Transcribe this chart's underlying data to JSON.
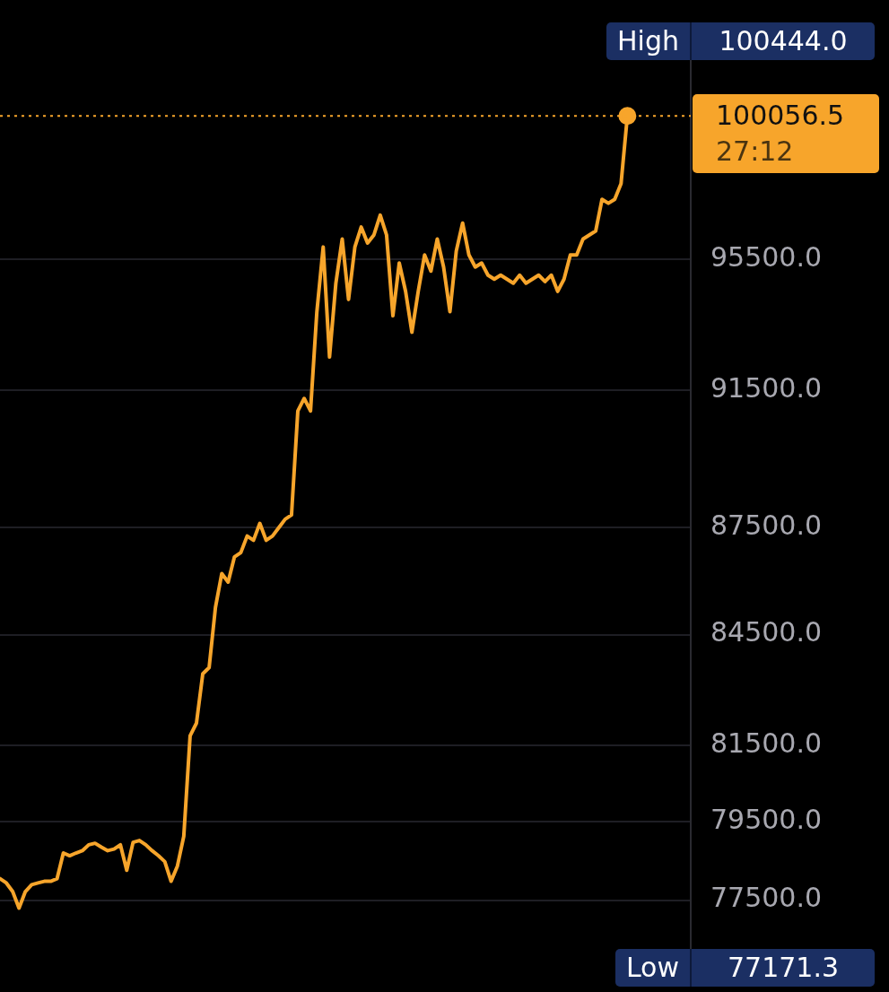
{
  "chart_data": {
    "type": "line",
    "categories": [
      null,
      null,
      null,
      null,
      null,
      null,
      null,
      null,
      null,
      null,
      null,
      null,
      null,
      null,
      null,
      null,
      null,
      null,
      null,
      null,
      null,
      null,
      null,
      null,
      null,
      null,
      null,
      null,
      null,
      null,
      null,
      null,
      null,
      null,
      null,
      null,
      null,
      null,
      null,
      null,
      null,
      null,
      null,
      null,
      null,
      null,
      null,
      null,
      null,
      null,
      null,
      null,
      null,
      null,
      null,
      null,
      null,
      null,
      null,
      null,
      null,
      null,
      null,
      null,
      null,
      null,
      null,
      null,
      null,
      null,
      null,
      null,
      null,
      null,
      null,
      null,
      null,
      null,
      null,
      null,
      null,
      null,
      null,
      null,
      null,
      null,
      null,
      null,
      null,
      null,
      null,
      null,
      null,
      null,
      null,
      null,
      null,
      null,
      null,
      null,
      null,
      null,
      null,
      null,
      null,
      null,
      null,
      null,
      null,
      null
    ],
    "series": [
      {
        "color": "#f7a52b",
        "values": [
          78043,
          77935,
          77717,
          77300,
          77717,
          77890,
          77935,
          77978,
          77978,
          78043,
          78700,
          78630,
          78700,
          78760,
          78910,
          78950,
          78850,
          78760,
          78800,
          78910,
          78260,
          78975,
          79020,
          78910,
          78760,
          78630,
          78480,
          77978,
          78370,
          79130,
          81764,
          82100,
          83430,
          83600,
          85256,
          86200,
          85960,
          86670,
          86790,
          87260,
          87140,
          87620,
          87140,
          87260,
          87500,
          87740,
          87860,
          90890,
          91260,
          90890,
          93870,
          95875,
          92500,
          94750,
          96125,
          94250,
          95875,
          96500,
          96000,
          96250,
          96875,
          96250,
          93750,
          95375,
          94500,
          93250,
          94500,
          95625,
          95125,
          96125,
          95250,
          93875,
          95750,
          96625,
          95625,
          95250,
          95375,
          95000,
          94875,
          95000,
          94875,
          94750,
          95000,
          94750,
          94875,
          95000,
          94800,
          95000,
          94500,
          94875,
          95625,
          95625,
          96125,
          96250,
          96375,
          97375,
          97250,
          97375,
          97875,
          100056.5,
          null,
          null,
          null,
          null,
          null,
          null,
          null,
          null,
          null,
          null
        ]
      }
    ],
    "log": true,
    "ylim": [
      76100,
      102700
    ],
    "yticks": [
      {
        "value": 77500,
        "label": "77500.0"
      },
      {
        "value": 79500,
        "label": "79500.0"
      },
      {
        "value": 81500,
        "label": "81500.0"
      },
      {
        "value": 84500,
        "label": "84500.0"
      },
      {
        "value": 87500,
        "label": "87500.0"
      },
      {
        "value": 91500,
        "label": "91500.0"
      },
      {
        "value": 95500,
        "label": "95500.0"
      }
    ],
    "tick_labels": "y",
    "grid": "y",
    "legend": false,
    "line_style": "solid",
    "ref_lines": [
      {
        "axis": "y",
        "value": 100056.5,
        "label": "100056.5",
        "color": "#f7a52b",
        "line_style": "dotted"
      }
    ],
    "annotations": [
      "High",
      "100444.0",
      "Low",
      "77171.3",
      "27:12"
    ]
  }
}
